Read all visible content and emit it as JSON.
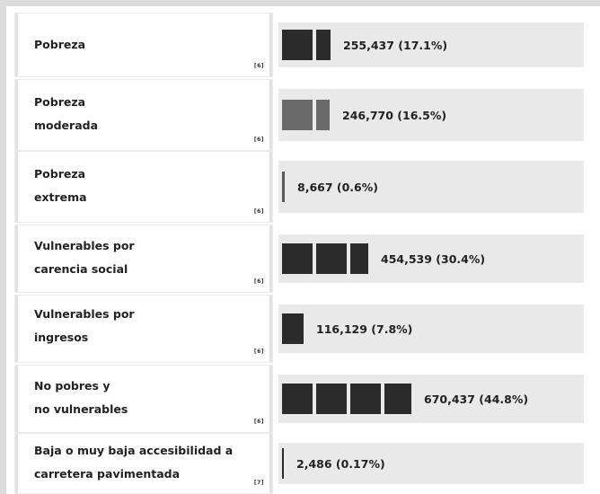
{
  "rows": [
    {
      "label": "Pobreza",
      "value": "255,437 (17.1%)",
      "ref": "[6]"
    },
    {
      "label": "Pobreza\nmoderada",
      "value": "246,770 (16.5%)",
      "ref": "[6]"
    },
    {
      "label": "Pobreza\nextrema",
      "value": "8,667 (0.6%)",
      "ref": "[6]"
    },
    {
      "label": "Vulnerables por\ncarencia social",
      "value": "454,539 (30.4%)",
      "ref": "[6]"
    },
    {
      "label": "Vulnerables por\ningresos",
      "value": "116,129 (7.8%)",
      "ref": "[6]"
    },
    {
      "label": "No pobres y\nno vulnerables",
      "value": "670,437 (44.8%)",
      "ref": "[6]"
    },
    {
      "label": "Baja o muy baja accesibilidad a\ncarretera pavimentada",
      "value": "2,486 (0.17%)",
      "ref": "[7]"
    }
  ],
  "colors": {
    "bar": "#2b2b2b",
    "bar_moderate": "#6a6a6a",
    "bar_background": "#e9e9e9"
  }
}
